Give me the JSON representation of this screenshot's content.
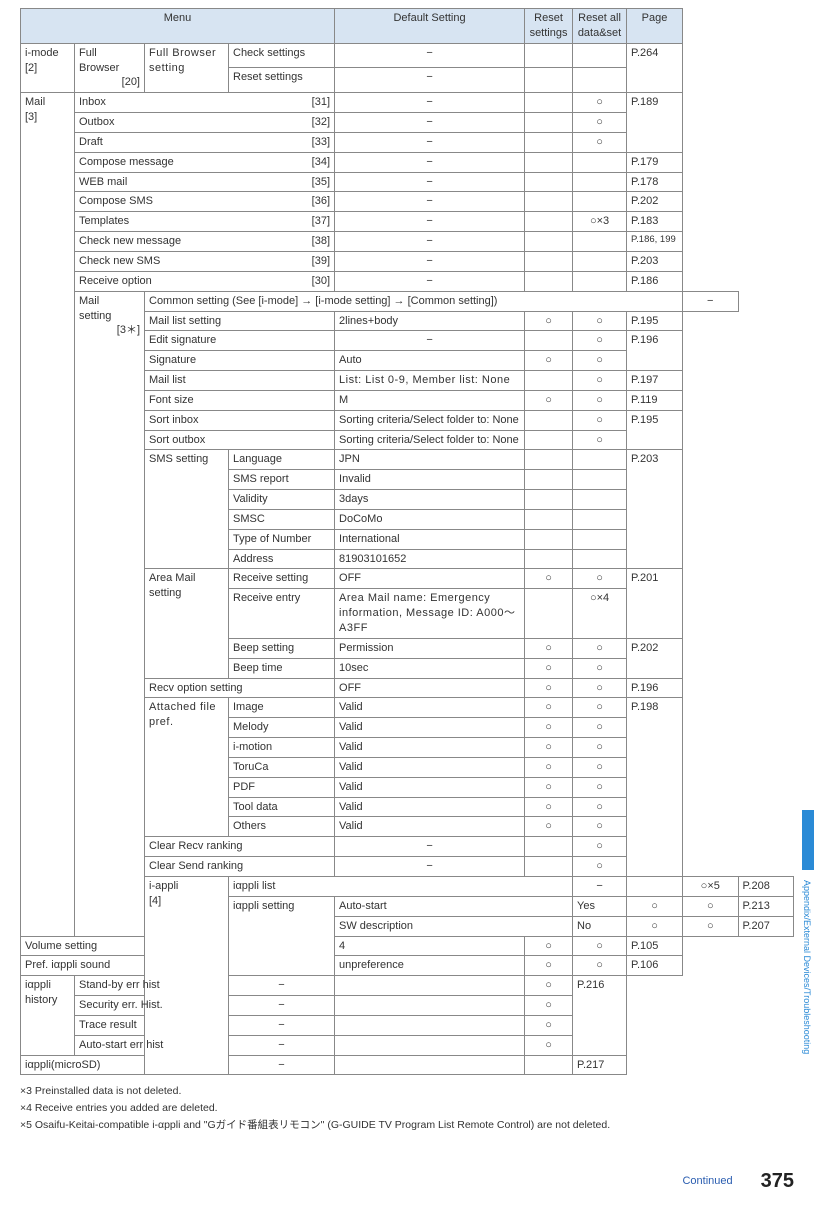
{
  "header": {
    "menu": "Menu",
    "default": "Default Setting",
    "reset_settings": "Reset\nsettings",
    "reset_all": "Reset all\ndata&set",
    "page": "Page"
  },
  "groups": {
    "imode": {
      "label": "i-mode",
      "code": "[2]"
    },
    "mail": {
      "label": "Mail",
      "code": "[3]"
    },
    "iappli": {
      "label": "i-appli",
      "code": "[4]"
    }
  },
  "fb": {
    "label": "Full Browser",
    "code": "[20]",
    "setting": "Full Browser setting",
    "check": "Check settings",
    "reset": "Reset settings",
    "page": "P.264"
  },
  "mail_rows": [
    {
      "name": "Inbox",
      "num": "[31]",
      "def": "−",
      "ra": "○",
      "pg": "P.189"
    },
    {
      "name": "Outbox",
      "num": "[32]",
      "def": "−",
      "ra": "○",
      "pg": ""
    },
    {
      "name": "Draft",
      "num": "[33]",
      "def": "−",
      "ra": "○",
      "pg": ""
    },
    {
      "name": "Compose message",
      "num": "[34]",
      "def": "−",
      "ra": "",
      "pg": "P.179"
    },
    {
      "name": "WEB mail",
      "num": "[35]",
      "def": "−",
      "ra": "",
      "pg": "P.178"
    },
    {
      "name": "Compose SMS",
      "num": "[36]",
      "def": "−",
      "ra": "",
      "pg": "P.202"
    },
    {
      "name": "Templates",
      "num": "[37]",
      "def": "−",
      "ra": "○×3",
      "pg": "P.183"
    },
    {
      "name": "Check new message",
      "num": "[38]",
      "def": "−",
      "ra": "",
      "pg": "P.186, 199"
    },
    {
      "name": "Check new SMS",
      "num": "[39]",
      "def": "−",
      "ra": "",
      "pg": "P.203"
    },
    {
      "name": "Receive option",
      "num": "[30]",
      "def": "−",
      "ra": "",
      "pg": "P.186"
    }
  ],
  "mailsetting": {
    "label": "Mail\nsetting",
    "code": "[3＊]",
    "common": "Common setting (See [i-mode] → [i-mode setting] → [Common setting])",
    "rows1": [
      {
        "name": "Mail list setting",
        "def": "2lines+body",
        "rs": "○",
        "ra": "○",
        "pg": "P.195"
      },
      {
        "name": "Edit signature",
        "def": "−",
        "rs": "",
        "ra": "○",
        "pg": "P.196"
      },
      {
        "name": "Signature",
        "def": "Auto",
        "rs": "○",
        "ra": "○",
        "pg": ""
      },
      {
        "name": "Mail list",
        "def": "List: List 0-9, Member list: None",
        "rs": "",
        "ra": "○",
        "pg": "P.197"
      },
      {
        "name": "Font size",
        "def": "M",
        "rs": "○",
        "ra": "○",
        "pg": "P.119"
      },
      {
        "name": "Sort inbox",
        "def": "Sorting criteria/Select folder to: None",
        "rs": "",
        "ra": "○",
        "pg": "P.195"
      },
      {
        "name": "Sort outbox",
        "def": "Sorting criteria/Select folder to: None",
        "rs": "",
        "ra": "○",
        "pg": ""
      }
    ],
    "sms": {
      "label": "SMS setting",
      "rows": [
        {
          "name": "Language",
          "def": "JPN",
          "pg": "P.203"
        },
        {
          "name": "SMS report",
          "def": "Invalid",
          "pg": ""
        },
        {
          "name": "Validity",
          "def": "3days",
          "pg": ""
        },
        {
          "name": "SMSC",
          "def": "DoCoMo",
          "pg": ""
        },
        {
          "name": "Type of Number",
          "def": "International",
          "pg": ""
        },
        {
          "name": "Address",
          "def": "81903101652",
          "pg": ""
        }
      ]
    },
    "areamail": {
      "label": "Area Mail setting",
      "rows": [
        {
          "name": "Receive setting",
          "def": "OFF",
          "rs": "○",
          "ra": "○",
          "pg": "P.201"
        },
        {
          "name": "Receive entry",
          "def": "Area Mail name: Emergency information, Message ID: A000〜A3FF",
          "rs": "",
          "ra": "○×4",
          "pg": ""
        },
        {
          "name": "Beep setting",
          "def": "Permission",
          "rs": "○",
          "ra": "○",
          "pg": "P.202"
        },
        {
          "name": "Beep time",
          "def": "10sec",
          "rs": "○",
          "ra": "○",
          "pg": ""
        }
      ]
    },
    "recvopt": {
      "name": "Recv option setting",
      "def": "OFF",
      "rs": "○",
      "ra": "○",
      "pg": "P.196"
    },
    "attached": {
      "label": "Attached file pref.",
      "rows": [
        {
          "name": "Image",
          "def": "Valid",
          "rs": "○",
          "ra": "○",
          "pg": "P.198"
        },
        {
          "name": "Melody",
          "def": "Valid",
          "rs": "○",
          "ra": "○",
          "pg": ""
        },
        {
          "name": "i-motion",
          "def": "Valid",
          "rs": "○",
          "ra": "○",
          "pg": ""
        },
        {
          "name": "ToruCa",
          "def": "Valid",
          "rs": "○",
          "ra": "○",
          "pg": ""
        },
        {
          "name": "PDF",
          "def": "Valid",
          "rs": "○",
          "ra": "○",
          "pg": ""
        },
        {
          "name": "Tool data",
          "def": "Valid",
          "rs": "○",
          "ra": "○",
          "pg": ""
        },
        {
          "name": "Others",
          "def": "Valid",
          "rs": "○",
          "ra": "○",
          "pg": ""
        }
      ]
    },
    "clear_recv": {
      "name": "Clear Recv ranking",
      "def": "−",
      "ra": "○"
    },
    "clear_send": {
      "name": "Clear Send ranking",
      "def": "−",
      "ra": "○"
    }
  },
  "iappli": {
    "list": {
      "name": "iαppli list",
      "def": "−",
      "ra": "○×5",
      "pg": "P.208"
    },
    "setting": {
      "label": "iαppli setting",
      "rows": [
        {
          "name": "Auto-start",
          "def": "Yes",
          "rs": "○",
          "ra": "○",
          "pg": "P.213"
        },
        {
          "name": "SW description",
          "def": "No",
          "rs": "○",
          "ra": "○",
          "pg": "P.207"
        },
        {
          "name": "Volume setting",
          "def": "4",
          "rs": "○",
          "ra": "○",
          "pg": "P.105"
        },
        {
          "name": "Pref. iαppli sound",
          "def": "unpreference",
          "rs": "○",
          "ra": "○",
          "pg": "P.106"
        }
      ]
    },
    "history": {
      "label": "iαppli history",
      "rows": [
        {
          "name": "Stand-by err hist",
          "def": "−",
          "ra": "○",
          "pg": "P.216"
        },
        {
          "name": "Security err. Hist.",
          "def": "−",
          "ra": "○",
          "pg": ""
        },
        {
          "name": "Trace result",
          "def": "−",
          "ra": "○",
          "pg": ""
        },
        {
          "name": "Auto-start err hist",
          "def": "−",
          "ra": "○",
          "pg": ""
        }
      ]
    },
    "microsd": {
      "name": "iαppli(microSD)",
      "def": "−",
      "pg": "P.217"
    }
  },
  "footnotes": [
    "×3 Preinstalled data is not deleted.",
    "×4 Receive entries you added are deleted.",
    "×5 Osaifu-Keitai-compatible i-αppli and \"Gガイド番組表リモコン\" (G-GUIDE TV Program List Remote Control) are not deleted."
  ],
  "footer": {
    "continued": "Continued",
    "page": "375"
  },
  "side": "Appendix/External Devices/Troubleshooting"
}
